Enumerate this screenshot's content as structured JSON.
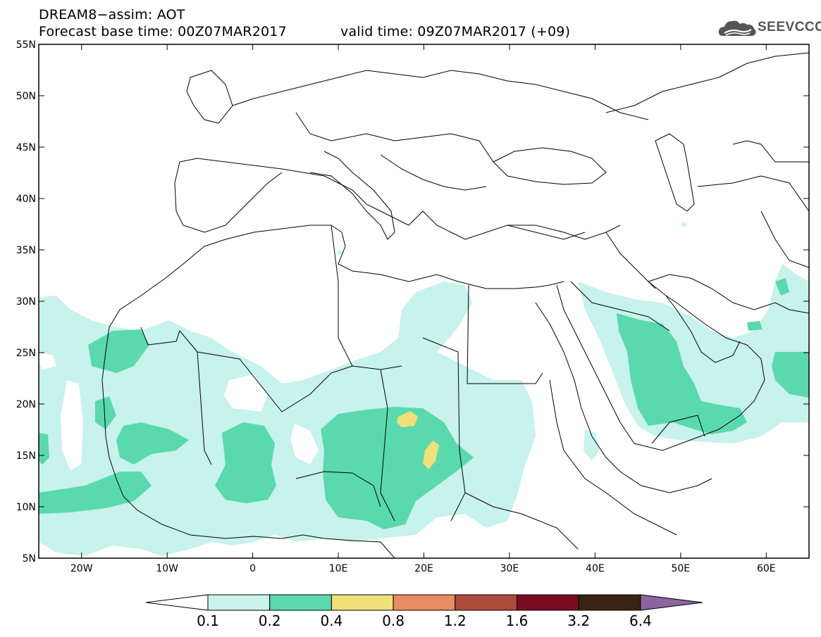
{
  "header": {
    "line1": "DREAM8−assim: AOT",
    "line2": "Forecast base time: 00Z07MAR2017",
    "valid_time": "valid time: 09Z07MAR2017 (+09)"
  },
  "logo": {
    "text": "SEEVCCC",
    "icon": "cloud-logo-icon"
  },
  "map": {
    "lon_range": [
      -25,
      65
    ],
    "lat_range": [
      5,
      55
    ],
    "lon_ticks": [
      {
        "value": -20,
        "label": "20W"
      },
      {
        "value": -10,
        "label": "10W"
      },
      {
        "value": 0,
        "label": "0"
      },
      {
        "value": 10,
        "label": "10E"
      },
      {
        "value": 20,
        "label": "20E"
      },
      {
        "value": 30,
        "label": "30E"
      },
      {
        "value": 40,
        "label": "40E"
      },
      {
        "value": 50,
        "label": "50E"
      },
      {
        "value": 60,
        "label": "60E"
      }
    ],
    "lat_ticks": [
      {
        "value": 5,
        "label": "5N"
      },
      {
        "value": 10,
        "label": "10N"
      },
      {
        "value": 15,
        "label": "15N"
      },
      {
        "value": 20,
        "label": "20N"
      },
      {
        "value": 25,
        "label": "25N"
      },
      {
        "value": 30,
        "label": "30N"
      },
      {
        "value": 35,
        "label": "35N"
      },
      {
        "value": 40,
        "label": "40N"
      },
      {
        "value": 45,
        "label": "45N"
      },
      {
        "value": 50,
        "label": "50N"
      },
      {
        "value": 55,
        "label": "55N"
      }
    ]
  },
  "colorbar": {
    "labels": [
      "0.1",
      "0.2",
      "0.4",
      "0.8",
      "1.2",
      "1.6",
      "3.2",
      "6.4"
    ],
    "colors": [
      "#c8f2ec",
      "#5ad9ae",
      "#f0e07a",
      "#e88c64",
      "#ad4a3c",
      "#7a0c22",
      "#3a2314",
      "#8c64a0"
    ],
    "under_color": "#ffffff"
  },
  "aot_colors": {
    "band_0_1_0_2": "#c8f2ec",
    "band_0_2_0_4": "#5ad9ae",
    "band_0_4_0_8": "#f0e07a"
  }
}
